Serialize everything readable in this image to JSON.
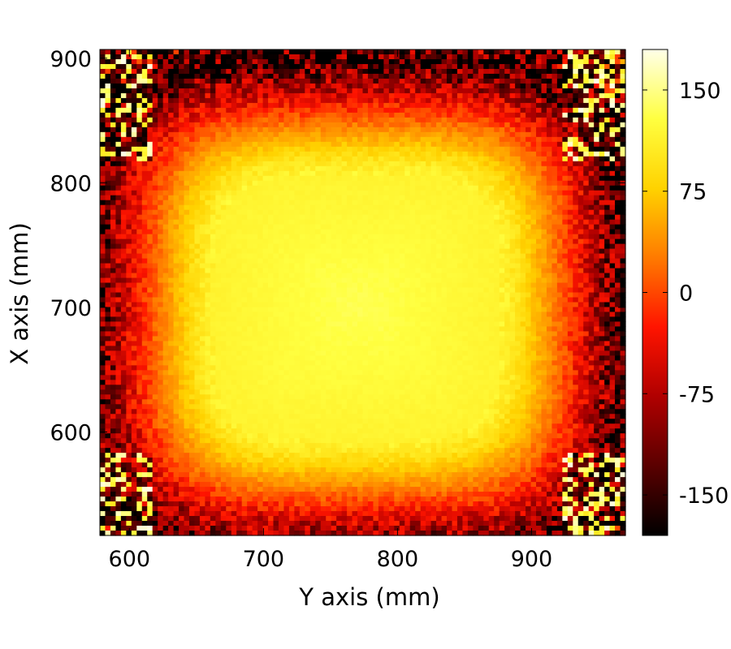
{
  "chart_data": {
    "type": "heatmap",
    "title": "",
    "xlabel": "Y axis (mm)",
    "ylabel": "X axis (mm)",
    "xlim": [
      578,
      970
    ],
    "ylim": [
      517,
      907
    ],
    "xticks": [
      600,
      700,
      800,
      900
    ],
    "yticks": [
      600,
      700,
      800,
      900
    ],
    "colorbar": {
      "range": [
        -180,
        180
      ],
      "ticks": [
        -150,
        -75,
        0,
        75,
        150
      ],
      "colormap": "hot",
      "stops": [
        "#000000",
        "#5a0000",
        "#b00000",
        "#ff1400",
        "#ff7a00",
        "#ffd200",
        "#ffff40",
        "#ffffe8"
      ]
    },
    "grid": false,
    "field_summary": {
      "center_y_mm": 770,
      "center_x_mm": 700,
      "peak_value": 135,
      "plateau_value": 115,
      "edge_value": -140,
      "corner_noise_values": [
        -180,
        180
      ],
      "cells_across": 100,
      "cells_down": 100
    }
  }
}
